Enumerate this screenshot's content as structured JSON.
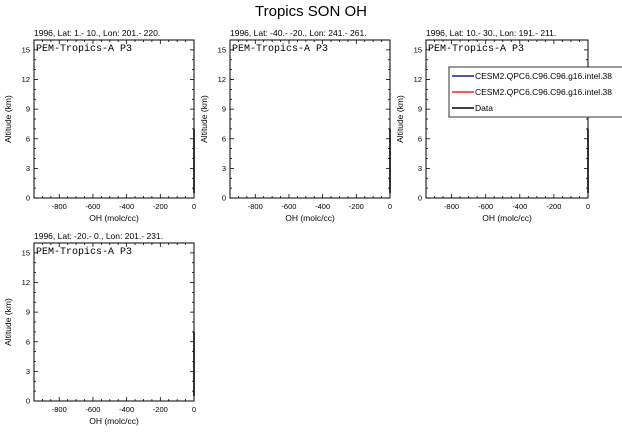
{
  "title": "Tropics SON OH",
  "legend": {
    "entries": [
      {
        "label": "CESM2.QPC6.C96.C96.g16.intel.38",
        "color": "#1a1a9a"
      },
      {
        "label": "CESM2.QPC6.C96.C96.g16.intel.38",
        "color": "#ff2020"
      },
      {
        "label": "Data",
        "color": "#000000"
      }
    ]
  },
  "chart_data": [
    {
      "type": "line",
      "title": "1996, Lat: 1.- 10., Lon: 201.- 220.",
      "annotation": "PEM-Tropics-A P3",
      "xlabel": "OH (molc/cc)",
      "ylabel": "Altitude (km)",
      "xlim": [
        -950,
        0
      ],
      "ylim": [
        0,
        16
      ],
      "xticks": [
        -800,
        -600,
        -400,
        -200,
        0
      ],
      "yticks": [
        0,
        3,
        6,
        9,
        12,
        15
      ],
      "series": [
        {
          "name": "Data",
          "x": [
            0,
            0
          ],
          "y": [
            0.5,
            7
          ]
        }
      ]
    },
    {
      "type": "line",
      "title": "1996, Lat: -40.- -20., Lon: 241.- 261.",
      "annotation": "PEM-Tropics-A P3",
      "xlabel": "OH (molc/cc)",
      "ylabel": "Altitude (km)",
      "xlim": [
        -950,
        0
      ],
      "ylim": [
        0,
        16
      ],
      "xticks": [
        -800,
        -600,
        -400,
        -200,
        0
      ],
      "yticks": [
        0,
        3,
        6,
        9,
        12,
        15
      ],
      "series": [
        {
          "name": "Data",
          "x": [
            0,
            0
          ],
          "y": [
            0.5,
            7
          ]
        }
      ]
    },
    {
      "type": "line",
      "title": "1996, Lat: 10.- 30., Lon: 191.- 211.",
      "annotation": "PEM-Tropics-A P3",
      "xlabel": "OH (molc/cc)",
      "ylabel": "Altitude (km)",
      "xlim": [
        -950,
        0
      ],
      "ylim": [
        0,
        16
      ],
      "xticks": [
        -800,
        -600,
        -400,
        -200,
        0
      ],
      "yticks": [
        0,
        3,
        6,
        9,
        12,
        15
      ],
      "series": [
        {
          "name": "Data",
          "x": [
            0,
            0
          ],
          "y": [
            0.5,
            7
          ]
        }
      ]
    },
    {
      "type": "line",
      "title": "1996, Lat: -20.- 0., Lon: 201.- 231.",
      "annotation": "PEM-Tropics-A P3",
      "xlabel": "OH (molc/cc)",
      "ylabel": "Altitude (km)",
      "xlim": [
        -950,
        0
      ],
      "ylim": [
        0,
        16
      ],
      "xticks": [
        -800,
        -600,
        -400,
        -200,
        0
      ],
      "yticks": [
        0,
        3,
        6,
        9,
        12,
        15
      ],
      "series": [
        {
          "name": "Data",
          "x": [
            0,
            0
          ],
          "y": [
            0.5,
            7
          ]
        }
      ]
    }
  ]
}
